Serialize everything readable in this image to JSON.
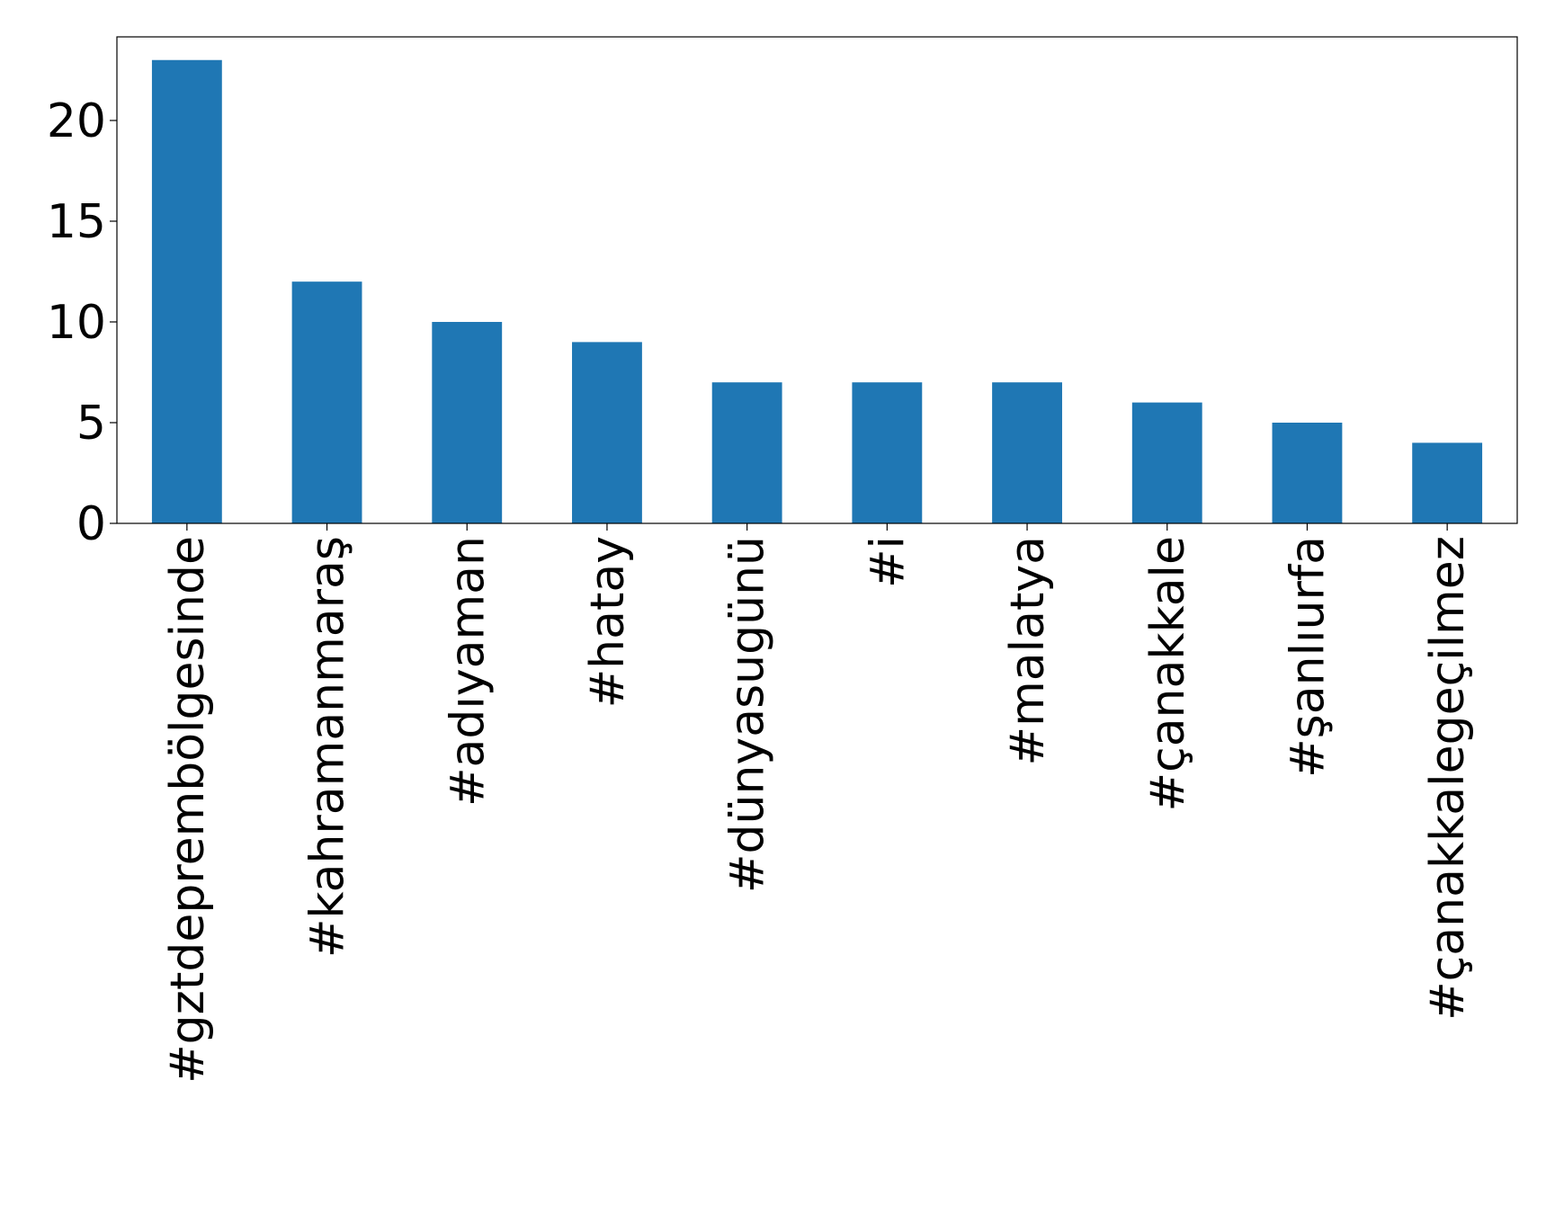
{
  "chart_data": {
    "type": "bar",
    "categories": [
      "#gztdeprembölgesinde",
      "#kahramanmaraş",
      "#adıyaman",
      "#hatay",
      "#dünyasugünü",
      "#i",
      "#malatya",
      "#çanakkale",
      "#şanlıurfa",
      "#çanakkalegeçilmez"
    ],
    "values": [
      23,
      12,
      10,
      9,
      7,
      7,
      7,
      6,
      5,
      4
    ],
    "color": "#1f77b4",
    "ylim": [
      0,
      24.15
    ],
    "yticks": [
      0,
      5,
      10,
      15,
      20
    ],
    "grid": false
  }
}
